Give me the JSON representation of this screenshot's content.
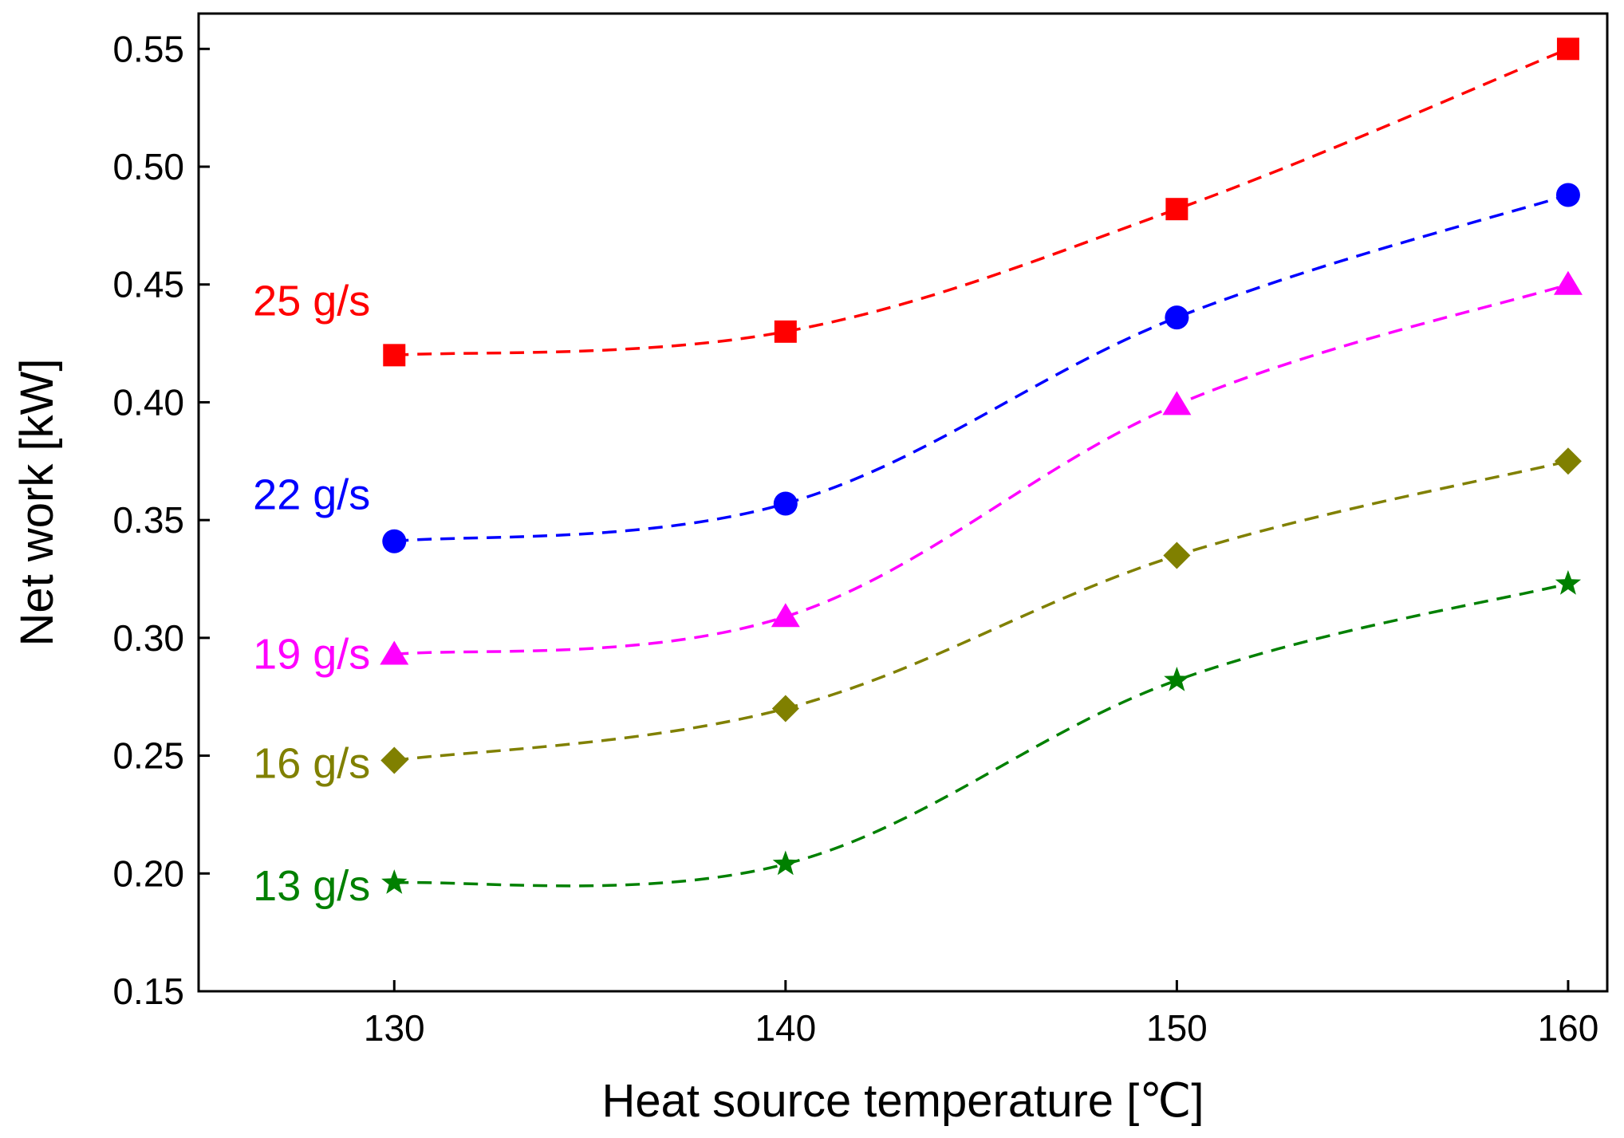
{
  "chart_data": {
    "type": "line",
    "xlabel": "Heat source temperature [℃]",
    "ylabel": "Net work [kW]",
    "xlim": [
      125,
      161
    ],
    "ylim": [
      0.15,
      0.565
    ],
    "x_ticks": [
      130,
      140,
      150,
      160
    ],
    "y_ticks": [
      0.15,
      0.2,
      0.25,
      0.3,
      0.35,
      0.4,
      0.45,
      0.5,
      0.55
    ],
    "x_tick_labels": [
      "130",
      "140",
      "150",
      "160"
    ],
    "y_tick_labels": [
      "0.15",
      "0.20",
      "0.25",
      "0.30",
      "0.35",
      "0.40",
      "0.45",
      "0.50",
      "0.55"
    ],
    "grid": false,
    "legend": "inline labels at left of each series",
    "x": [
      130,
      140,
      150,
      160
    ],
    "series": [
      {
        "name": "25 g/s",
        "marker": "square",
        "color": "#ff0000",
        "values": [
          0.42,
          0.43,
          0.482,
          0.55
        ]
      },
      {
        "name": "22 g/s",
        "marker": "circle",
        "color": "#0000ff",
        "values": [
          0.341,
          0.357,
          0.436,
          0.488
        ]
      },
      {
        "name": "19 g/s",
        "marker": "triangle",
        "color": "#ff00ff",
        "values": [
          0.293,
          0.309,
          0.399,
          0.45
        ]
      },
      {
        "name": "16 g/s",
        "marker": "diamond",
        "color": "#808000",
        "values": [
          0.248,
          0.27,
          0.335,
          0.375
        ]
      },
      {
        "name": "13 g/s",
        "marker": "star",
        "color": "#008000",
        "values": [
          0.196,
          0.204,
          0.282,
          0.323
        ]
      }
    ]
  }
}
